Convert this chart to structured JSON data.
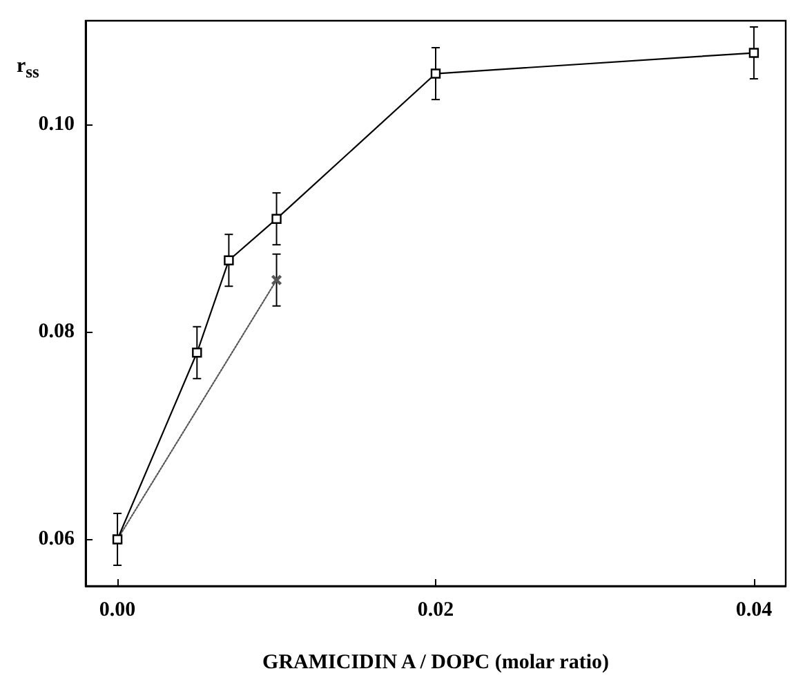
{
  "chart_data": {
    "type": "line",
    "xlabel": "GRAMICIDIN A / DOPC (molar ratio)",
    "ylabel": "r$_{ss}$",
    "xlim": [
      -0.002,
      0.042
    ],
    "xticks": [
      {
        "value": 0,
        "label": "0.00"
      },
      {
        "value": 0.02,
        "label": "0.02"
      },
      {
        "value": 0.04,
        "label": "0.04"
      }
    ],
    "ylim": [
      0.0555,
      0.11
    ],
    "yticks": [
      {
        "value": 0.06,
        "label": "0.06"
      },
      {
        "value": 0.08,
        "label": "0.08"
      },
      {
        "value": 0.1,
        "label": "0.10"
      }
    ],
    "grid": false,
    "series": [
      {
        "color": "#000000",
        "marker": "square",
        "line_style": "solid",
        "x": [
          0,
          0.005,
          0.007,
          0.01,
          0.02,
          0.04
        ],
        "values": [
          0.06,
          0.078,
          0.0869,
          0.0909,
          0.1049,
          0.1069
        ],
        "errors": [
          0.0025,
          0.0025,
          0.0025,
          0.0025,
          0.0025,
          0.0025
        ]
      },
      {
        "color": "#555555",
        "marker": "cross",
        "line_style": "dotted",
        "x": [
          0,
          0.01
        ],
        "values": [
          0.06,
          0.085
        ],
        "errors": [
          null,
          0.0025
        ]
      }
    ]
  }
}
